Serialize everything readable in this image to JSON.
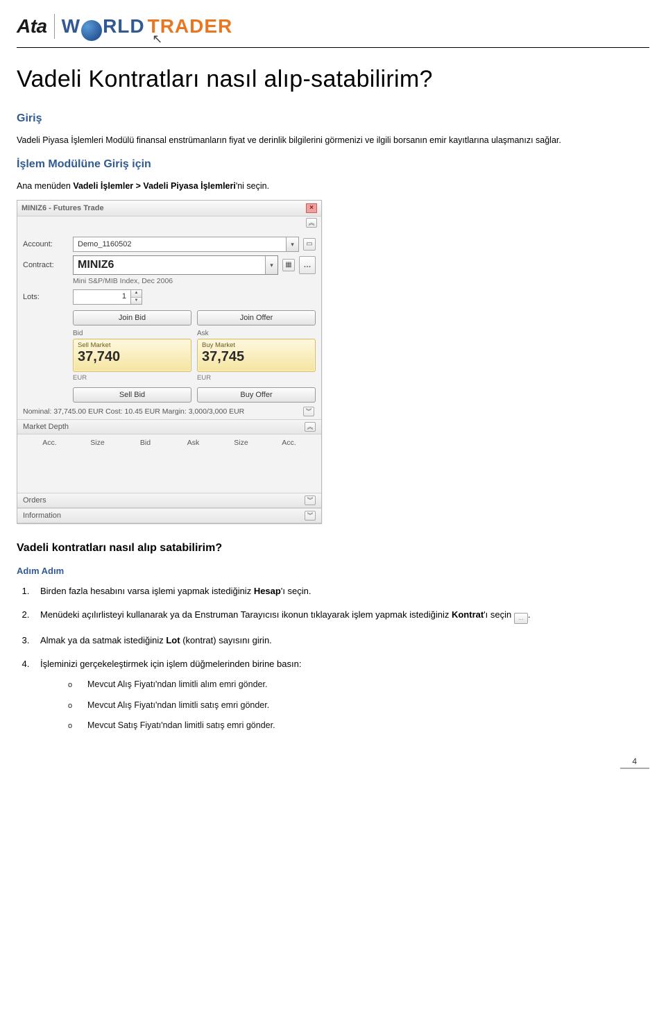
{
  "logo": {
    "ata": "Ata",
    "w": "W",
    "rld": "RLD",
    "trader": "TRADER"
  },
  "page_title": "Vadeli Kontratları nasıl alıp-satabilirim?",
  "section_giris": {
    "heading": "Giriş",
    "text": "Vadeli Piyasa İşlemleri Modülü finansal enstrümanların fiyat ve derinlik bilgilerini görmenizi ve ilgili borsanın emir kayıtlarına ulaşmanızı sağlar."
  },
  "section_module": {
    "heading": "İşlem Modülüne Giriş için",
    "text_pre": "Ana menüden ",
    "text_bold": "Vadeli İşlemler > Vadeli Piyasa İşlemleri",
    "text_post": "'ni seçin."
  },
  "trade_window": {
    "title": "MINIZ6 - Futures Trade",
    "labels": {
      "account": "Account:",
      "contract": "Contract:",
      "lots": "Lots:"
    },
    "account_value": "Demo_1160502",
    "contract_value": "MINIZ6",
    "contract_desc": "Mini S&P/MIB Index, Dec 2006",
    "lots_value": "1",
    "buttons": {
      "join_bid": "Join Bid",
      "join_offer": "Join Offer",
      "sell_bid": "Sell Bid",
      "buy_offer": "Buy Offer"
    },
    "bid": {
      "header": "Bid",
      "label": "Sell Market",
      "price": "37,740",
      "currency": "EUR"
    },
    "ask": {
      "header": "Ask",
      "label": "Buy Market",
      "price": "37,745",
      "currency": "EUR"
    },
    "statusline": "Nominal: 37,745.00 EUR   Cost: 10.45 EUR   Margin: 3,000/3,000 EUR",
    "sections": {
      "market_depth": "Market Depth",
      "orders": "Orders",
      "information": "Information"
    },
    "depth_cols": [
      "Acc.",
      "Size",
      "Bid",
      "Ask",
      "Size",
      "Acc."
    ],
    "icons": {
      "close": "×",
      "collapse_up": "︽",
      "collapse_down": "︾",
      "arrow_down": "▾",
      "spin_up": "▲",
      "spin_down": "▼",
      "doc": "▭",
      "cal": "▦",
      "browse": "…"
    }
  },
  "section_howto": {
    "heading": "Vadeli kontratları nasıl alıp satabilirim?",
    "sub": "Adım Adım",
    "steps": [
      {
        "pre": "Birden fazla hesabını varsa işlemi yapmak istediğiniz ",
        "bold": "Hesap",
        "post": "'ı seçin."
      },
      {
        "pre": "Menüdeki açılırlisteyi kullanarak ya da Enstruman Tarayıcısı ikonun tıklayarak işlem yapmak istediğiniz ",
        "bold": "Kontrat",
        "post": "'ı seçin",
        "browse": true,
        "post2": "."
      },
      {
        "pre": "Almak ya da satmak istediğiniz ",
        "bold": "Lot",
        "post": " (kontrat) sayısını girin."
      },
      {
        "pre": "İşleminizi gerçekeleştirmek için işlem düğmelerinden birine basın:"
      }
    ],
    "subitems": [
      "Mevcut Alış Fiyatı'ndan limitli alım emri gönder.",
      "Mevcut Alış Fiyatı'ndan limitli satış emri gönder.",
      "Mevcut Satış Fiyatı'ndan limitli satış emri gönder."
    ]
  },
  "page_number": "4"
}
